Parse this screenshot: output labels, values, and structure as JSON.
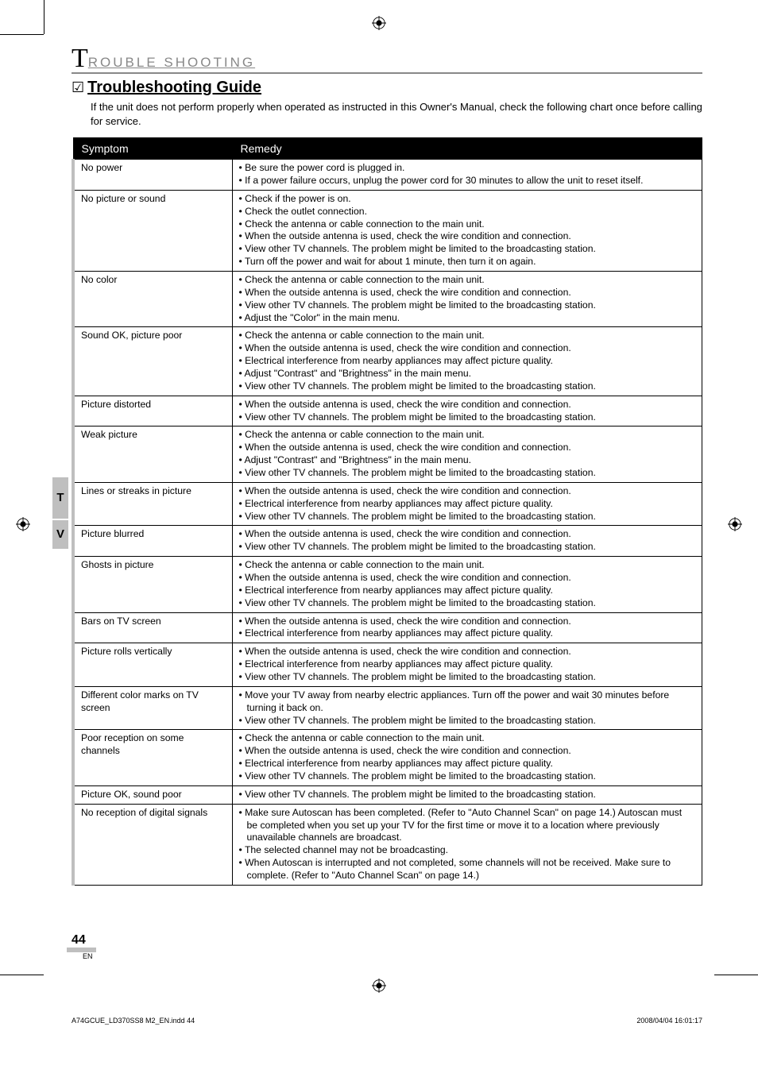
{
  "section": {
    "letter": "T",
    "rest": "ROUBLE   SHOOTING"
  },
  "subsection": {
    "checkmark": "☑",
    "title": "Troubleshooting Guide",
    "intro": "If the unit does not perform properly when operated as instructed in this Owner's Manual, check the following chart once before calling for service."
  },
  "sideTabs": {
    "t": "T",
    "v": "V"
  },
  "table": {
    "headers": {
      "symptom": "Symptom",
      "remedy": "Remedy"
    },
    "rows": [
      {
        "symptom": "No power",
        "remedy": [
          "Be sure the power cord is plugged in.",
          "If a power failure occurs, unplug the power cord for 30 minutes to allow the unit to reset itself."
        ]
      },
      {
        "symptom": "No picture or sound",
        "remedy": [
          "Check if the power is on.",
          "Check the outlet connection.",
          "Check the antenna or cable connection to the main unit.",
          "When the outside antenna is used, check the wire condition and connection.",
          "View other TV channels. The problem might be limited to the broadcasting station.",
          "Turn off the power and wait for about 1 minute, then turn it on again."
        ]
      },
      {
        "symptom": "No color",
        "remedy": [
          "Check the antenna or cable connection to the main unit.",
          "When the outside antenna is used, check the wire condition and connection.",
          "View other TV channels. The problem might be limited to the broadcasting station.",
          "Adjust the \"Color\" in the main menu."
        ]
      },
      {
        "symptom": "Sound OK, picture poor",
        "remedy": [
          "Check the antenna or cable connection to the main unit.",
          "When the outside antenna is used, check the wire condition and connection.",
          "Electrical interference from nearby appliances may affect picture quality.",
          "Adjust \"Contrast\" and \"Brightness\" in the main menu.",
          "View other TV channels. The problem might be limited to the broadcasting station."
        ]
      },
      {
        "symptom": "Picture distorted",
        "remedy": [
          "When the outside antenna is used, check the wire condition and connection.",
          "View other TV channels. The problem might be limited to the broadcasting station."
        ]
      },
      {
        "symptom": "Weak picture",
        "remedy": [
          "Check the antenna or cable connection to the main unit.",
          "When the outside antenna is used, check the wire condition and connection.",
          "Adjust \"Contrast\" and \"Brightness\" in the main menu.",
          "View other TV channels. The problem might be limited to the broadcasting station."
        ]
      },
      {
        "symptom": "Lines or streaks in picture",
        "remedy": [
          "When the outside antenna is used, check the wire condition and connection.",
          "Electrical interference from nearby appliances may affect picture quality.",
          "View other TV channels. The problem might be limited to the broadcasting station."
        ]
      },
      {
        "symptom": "Picture blurred",
        "remedy": [
          "When the outside antenna is used, check the wire condition and connection.",
          "View other TV channels. The problem might be limited to the broadcasting station."
        ]
      },
      {
        "symptom": "Ghosts in picture",
        "remedy": [
          "Check the antenna or cable connection to the main unit.",
          "When the outside antenna is used, check the wire condition and connection.",
          "Electrical interference from nearby appliances may affect picture quality.",
          "View other TV channels. The problem might be limited to the broadcasting station."
        ]
      },
      {
        "symptom": "Bars on TV screen",
        "remedy": [
          "When the outside antenna is used, check the wire condition and connection.",
          "Electrical interference from nearby appliances may affect picture quality."
        ]
      },
      {
        "symptom": "Picture rolls vertically",
        "remedy": [
          "When the outside antenna is used, check the wire condition and connection.",
          "Electrical interference from nearby appliances may affect picture quality.",
          "View other TV channels. The problem might be limited to the broadcasting station."
        ]
      },
      {
        "symptom": "Different color marks on TV screen",
        "remedy": [
          "Move your TV away from nearby electric appliances. Turn off the power and wait 30 minutes before turning it back on.",
          "View other TV channels. The problem might be limited to the broadcasting station."
        ]
      },
      {
        "symptom": "Poor reception on some channels",
        "remedy": [
          "Check the antenna or cable connection to the main unit.",
          "When the outside antenna is used, check the wire condition and connection.",
          "Electrical interference from nearby appliances may affect picture quality.",
          "View other TV channels. The problem might be limited to the broadcasting station."
        ]
      },
      {
        "symptom": "Picture OK, sound poor",
        "remedy": [
          "View other TV channels. The problem might be limited to the broadcasting station."
        ]
      },
      {
        "symptom": "No reception of digital signals",
        "remedy": [
          "Make sure Autoscan has been completed. (Refer to \"Auto Channel Scan\" on page 14.) Autoscan must be completed when you set up your TV for the first time or move it to a location where previously unavailable channels are broadcast.",
          "The selected channel may not be broadcasting.",
          "When Autoscan is interrupted and not completed, some channels will not be received. Make sure to complete. (Refer to \"Auto Channel Scan\" on page 14.)"
        ]
      }
    ]
  },
  "page": {
    "number": "44",
    "lang": "EN"
  },
  "footer": {
    "left": "A74GCUE_LD370SS8 M2_EN.indd   44",
    "right": "2008/04/04   16:01:17"
  },
  "colors": {
    "headerUnderline": "#888888",
    "sideTab": "#bfbfbf",
    "tableHeaderBg": "#000000",
    "tableHeaderFg": "#ffffff"
  }
}
